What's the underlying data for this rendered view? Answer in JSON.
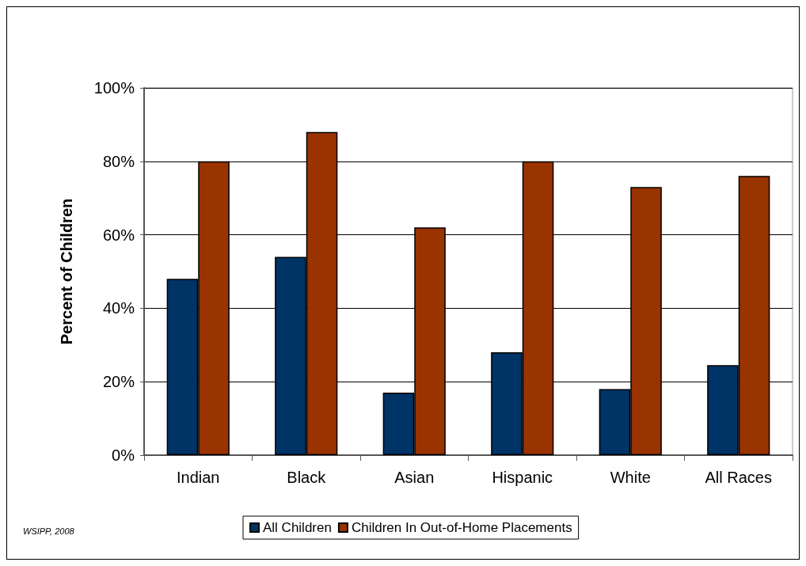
{
  "chart_data": {
    "type": "bar",
    "ylabel": "Percent of Children",
    "categories": [
      "Indian",
      "Black",
      "Asian",
      "Hispanic",
      "White",
      "All Races"
    ],
    "series": [
      {
        "name": "All Children",
        "color": "#003366",
        "values": [
          48,
          54,
          17,
          28,
          18,
          24.5
        ]
      },
      {
        "name": "Children In Out-of-Home Placements",
        "color": "#993300",
        "values": [
          80,
          88,
          62,
          80,
          73,
          76
        ]
      }
    ],
    "ylim": [
      0,
      100
    ],
    "yticks": [
      {
        "value": 0,
        "label": "0%"
      },
      {
        "value": 20,
        "label": "20%"
      },
      {
        "value": 40,
        "label": "40%"
      },
      {
        "value": 60,
        "label": "60%"
      },
      {
        "value": 80,
        "label": "80%"
      },
      {
        "value": 100,
        "label": "100%"
      }
    ],
    "grid": "y",
    "legend": "bottom",
    "annotations": [
      "WSIPP, 2008"
    ]
  }
}
